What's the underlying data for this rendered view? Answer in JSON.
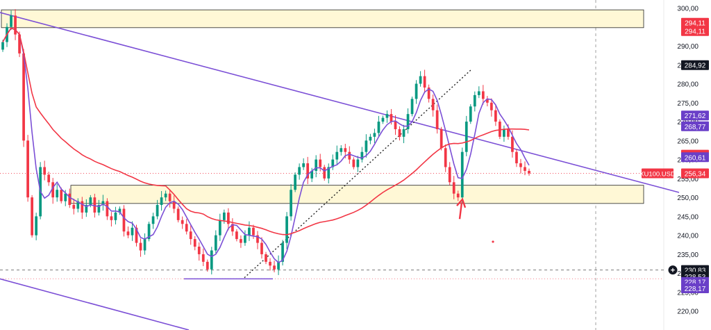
{
  "chart_data": {
    "type": "candlestick",
    "ticker": "XU100.USD",
    "y_range": [
      215,
      301
    ],
    "y_ticks": [
      220,
      225,
      230,
      235,
      240,
      245,
      250,
      255,
      260,
      265,
      270,
      275,
      280,
      285,
      290,
      300
    ],
    "y_tick_labels": [
      "220,00",
      "225,00",
      "230,00",
      "235,00",
      "240,00",
      "245,00",
      "250,00",
      "255,00",
      "260,00",
      "265,00",
      "270,00",
      "275,00",
      "280,00",
      "285,00",
      "290,00",
      "300,00"
    ],
    "price_badges": [
      {
        "label": "294,11",
        "value": 296.1,
        "color": "#f23645"
      },
      {
        "label": "294,11",
        "value": 293.9,
        "color": "#f23645"
      },
      {
        "label": "284,92",
        "value": 284.92,
        "color": "#131722"
      },
      {
        "label": "271,62",
        "value": 271.62,
        "color": "#6a3fc8"
      },
      {
        "label": "268,77",
        "value": 268.77,
        "color": "#6a3fc8"
      },
      {
        "label": "261,27",
        "value": 261.27,
        "color": "#f23645"
      },
      {
        "label": "260,61",
        "value": 260.61,
        "color": "#6a3fc8"
      },
      {
        "label": "256,34",
        "value": 256.34,
        "color": "#f23645"
      },
      {
        "label": "230,83",
        "value": 230.83,
        "color": "#131722"
      },
      {
        "label": "228,53",
        "value": 229.1,
        "color": "#131722"
      },
      {
        "label": "228,17",
        "value": 227.7,
        "color": "#6a3fc8"
      },
      {
        "label": "228,17",
        "value": 226.0,
        "color": "#6a3fc8"
      }
    ],
    "colors": {
      "up": "#089981",
      "down": "#f23645",
      "ma_fast": "#7b4fd6",
      "ma_slow": "#f23645",
      "trendline": "#7b4fd6",
      "zone_fill": "#fff8d6",
      "zone_border": "#222222",
      "dotted": "#222222",
      "arrow": "#f23645"
    },
    "closes": [
      291,
      295,
      298,
      293,
      288,
      265,
      250,
      240,
      245,
      258,
      256,
      254,
      250,
      252,
      249,
      251,
      248,
      247,
      249,
      246,
      248,
      250,
      246,
      248,
      249,
      245,
      244,
      246,
      247,
      241,
      240,
      242,
      238,
      236,
      239,
      243,
      245,
      248,
      250,
      251,
      249,
      247,
      244,
      243,
      241,
      239,
      237,
      235,
      233,
      231,
      236,
      240,
      244,
      246,
      243,
      241,
      239,
      238,
      240,
      242,
      240,
      238,
      235,
      233,
      232,
      231,
      233,
      238,
      245,
      252,
      256,
      258,
      259,
      255,
      257,
      260,
      258,
      255,
      258,
      260,
      262,
      263,
      262,
      260,
      258,
      260,
      262,
      265,
      266,
      267,
      270,
      271,
      272,
      270,
      268,
      266,
      268,
      272,
      276,
      280,
      282,
      279,
      276,
      273,
      268,
      263,
      258,
      254,
      251,
      250,
      262,
      270,
      274,
      277,
      278,
      276,
      275,
      273,
      270,
      266,
      268,
      266,
      262,
      259,
      258,
      257,
      256.34
    ]
  }
}
